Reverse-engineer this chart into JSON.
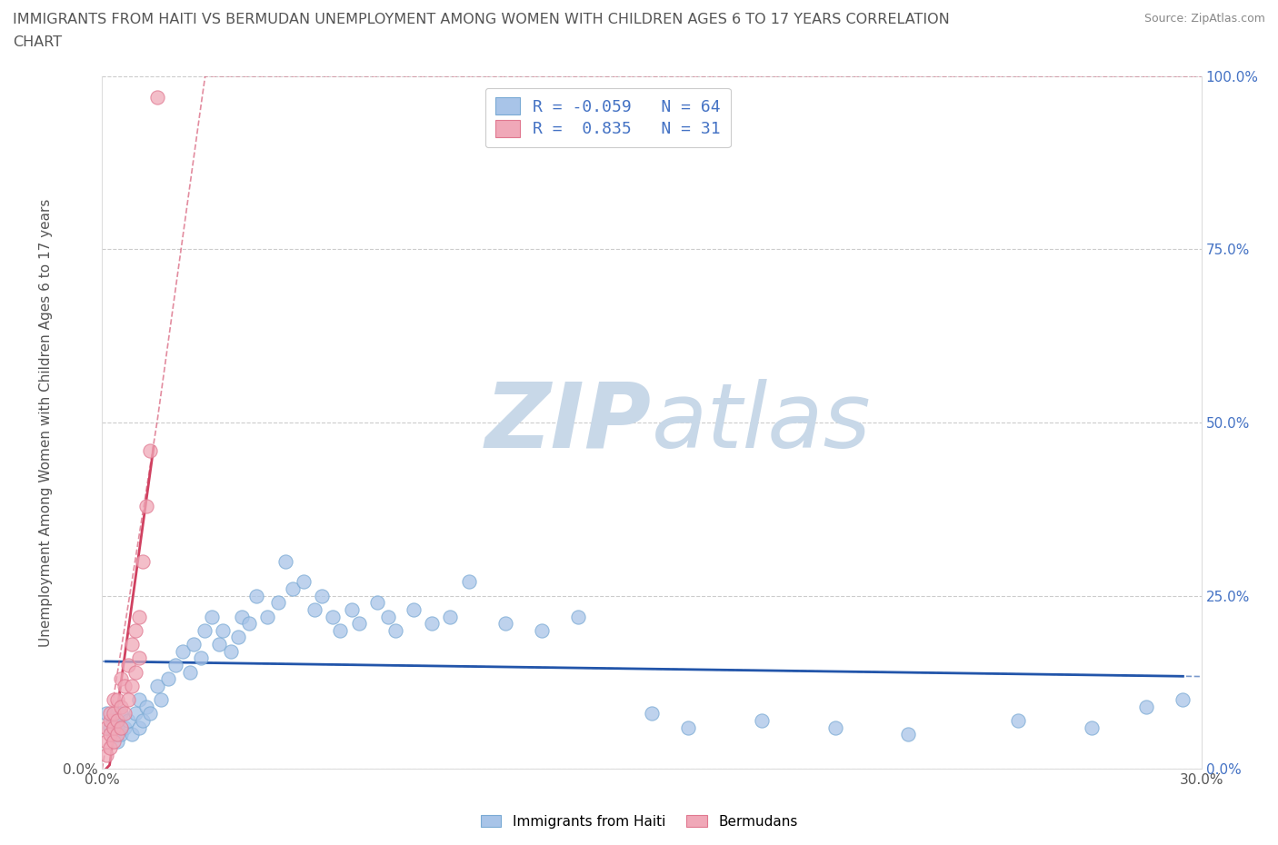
{
  "title_line1": "IMMIGRANTS FROM HAITI VS BERMUDAN UNEMPLOYMENT AMONG WOMEN WITH CHILDREN AGES 6 TO 17 YEARS CORRELATION",
  "title_line2": "CHART",
  "source": "Source: ZipAtlas.com",
  "ylabel": "Unemployment Among Women with Children Ages 6 to 17 years",
  "xlim": [
    0.0,
    0.3
  ],
  "ylim": [
    0.0,
    1.0
  ],
  "xticks": [
    0.0,
    0.05,
    0.1,
    0.15,
    0.2,
    0.25,
    0.3
  ],
  "yticks": [
    0.0,
    0.25,
    0.5,
    0.75,
    1.0
  ],
  "watermark_zip": "ZIP",
  "watermark_atlas": "atlas",
  "watermark_color_zip": "#c8d8e8",
  "watermark_color_atlas": "#c8d8e8",
  "legend_text_color": "#4472c4",
  "background_color": "#ffffff",
  "grid_color": "#cccccc",
  "title_color": "#555555",
  "axis_color": "#555555",
  "series": [
    {
      "name": "Immigrants from Haiti",
      "color": "#a8c4e8",
      "edge_color": "#7aaad4",
      "trend_color": "#2255aa",
      "R": -0.059,
      "N": 64,
      "x": [
        0.001,
        0.002,
        0.003,
        0.003,
        0.004,
        0.004,
        0.005,
        0.005,
        0.006,
        0.007,
        0.008,
        0.009,
        0.01,
        0.01,
        0.011,
        0.012,
        0.013,
        0.015,
        0.016,
        0.018,
        0.02,
        0.022,
        0.024,
        0.025,
        0.027,
        0.028,
        0.03,
        0.032,
        0.033,
        0.035,
        0.037,
        0.038,
        0.04,
        0.042,
        0.045,
        0.048,
        0.05,
        0.052,
        0.055,
        0.058,
        0.06,
        0.063,
        0.065,
        0.068,
        0.07,
        0.075,
        0.078,
        0.08,
        0.085,
        0.09,
        0.095,
        0.1,
        0.11,
        0.12,
        0.13,
        0.15,
        0.16,
        0.18,
        0.2,
        0.22,
        0.25,
        0.27,
        0.285,
        0.295
      ],
      "y": [
        0.08,
        0.06,
        0.05,
        0.07,
        0.04,
        0.06,
        0.05,
        0.08,
        0.06,
        0.07,
        0.05,
        0.08,
        0.06,
        0.1,
        0.07,
        0.09,
        0.08,
        0.12,
        0.1,
        0.13,
        0.15,
        0.17,
        0.14,
        0.18,
        0.16,
        0.2,
        0.22,
        0.18,
        0.2,
        0.17,
        0.19,
        0.22,
        0.21,
        0.25,
        0.22,
        0.24,
        0.3,
        0.26,
        0.27,
        0.23,
        0.25,
        0.22,
        0.2,
        0.23,
        0.21,
        0.24,
        0.22,
        0.2,
        0.23,
        0.21,
        0.22,
        0.27,
        0.21,
        0.2,
        0.22,
        0.08,
        0.06,
        0.07,
        0.06,
        0.05,
        0.07,
        0.06,
        0.09,
        0.1
      ]
    },
    {
      "name": "Bermudans",
      "color": "#f0a8b8",
      "edge_color": "#e07890",
      "trend_color": "#d04060",
      "R": 0.835,
      "N": 31,
      "x": [
        0.001,
        0.001,
        0.001,
        0.002,
        0.002,
        0.002,
        0.002,
        0.003,
        0.003,
        0.003,
        0.003,
        0.004,
        0.004,
        0.004,
        0.005,
        0.005,
        0.005,
        0.006,
        0.006,
        0.007,
        0.007,
        0.008,
        0.008,
        0.009,
        0.009,
        0.01,
        0.01,
        0.011,
        0.012,
        0.013,
        0.015
      ],
      "y": [
        0.02,
        0.04,
        0.06,
        0.03,
        0.05,
        0.07,
        0.08,
        0.04,
        0.06,
        0.08,
        0.1,
        0.05,
        0.07,
        0.1,
        0.06,
        0.09,
        0.13,
        0.08,
        0.12,
        0.1,
        0.15,
        0.12,
        0.18,
        0.14,
        0.2,
        0.16,
        0.22,
        0.3,
        0.38,
        0.46,
        0.97
      ]
    }
  ]
}
